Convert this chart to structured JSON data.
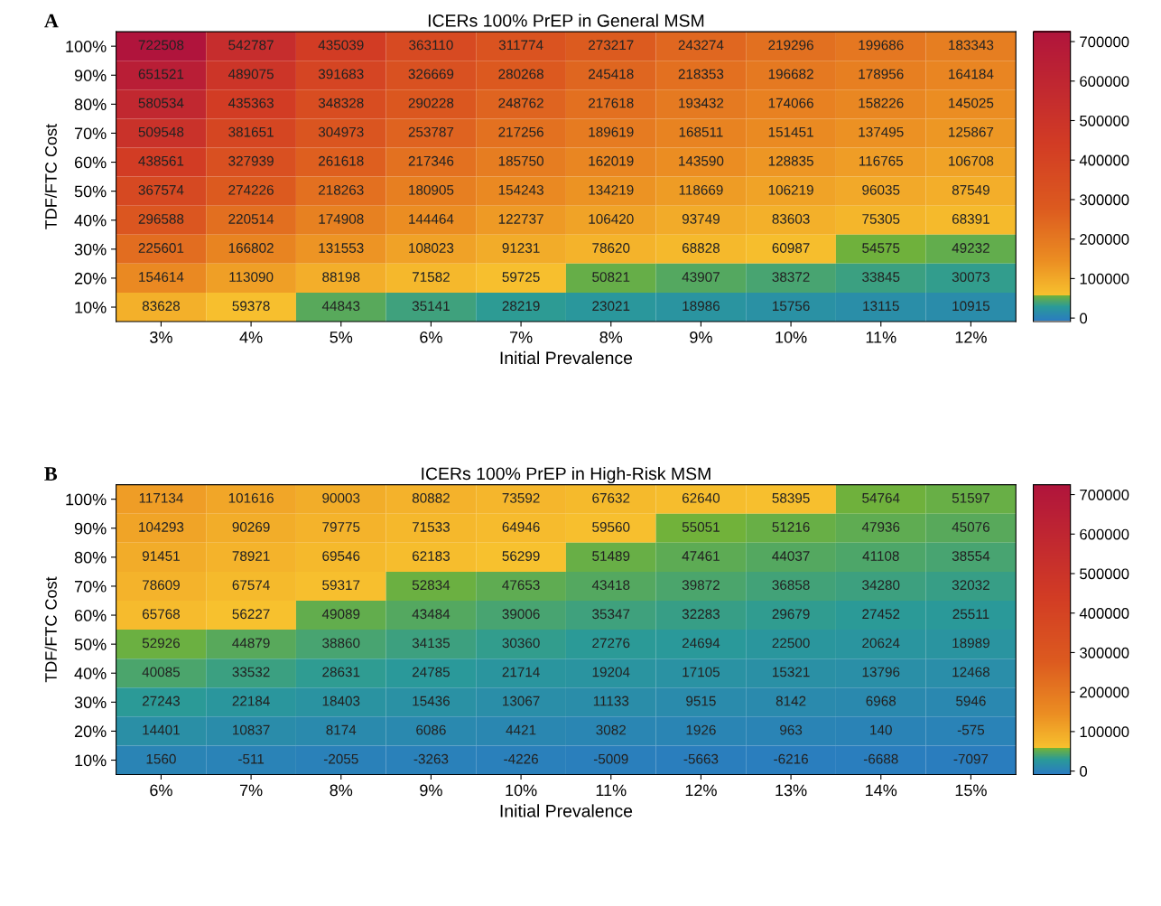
{
  "chart_data": [
    {
      "type": "heatmap",
      "title": "ICERs 100% PrEP in General MSM",
      "xlabel": "Initial Prevalence",
      "ylabel": "TDF/FTC Cost",
      "annotations": [
        "A"
      ],
      "categories": [
        "3%",
        "4%",
        "5%",
        "6%",
        "7%",
        "8%",
        "9%",
        "10%",
        "11%",
        "12%"
      ],
      "y_categories": [
        "100%",
        "90%",
        "80%",
        "70%",
        "60%",
        "50%",
        "40%",
        "30%",
        "20%",
        "10%"
      ],
      "cells": [
        [
          722508,
          542787,
          435039,
          363110,
          311774,
          273217,
          243274,
          219296,
          199686,
          183343
        ],
        [
          651521,
          489075,
          391683,
          326669,
          280268,
          245418,
          218353,
          196682,
          178956,
          164184
        ],
        [
          580534,
          435363,
          348328,
          290228,
          248762,
          217618,
          193432,
          174066,
          158226,
          145025
        ],
        [
          509548,
          381651,
          304973,
          253787,
          217256,
          189619,
          168511,
          151451,
          137495,
          125867
        ],
        [
          438561,
          327939,
          261618,
          217346,
          185750,
          162019,
          143590,
          128835,
          116765,
          106708
        ],
        [
          367574,
          274226,
          218263,
          180905,
          154243,
          134219,
          118669,
          106219,
          96035,
          87549
        ],
        [
          296588,
          220514,
          174908,
          144464,
          122737,
          106420,
          93749,
          83603,
          75305,
          68391
        ],
        [
          225601,
          166802,
          131553,
          108023,
          91231,
          78620,
          68828,
          60987,
          54575,
          49232
        ],
        [
          154614,
          113090,
          88198,
          71582,
          59725,
          50821,
          43907,
          38372,
          33845,
          30073
        ],
        [
          83628,
          59378,
          44843,
          35141,
          28219,
          23021,
          18986,
          15756,
          13115,
          10915
        ]
      ],
      "data_labels": true,
      "clim": [
        -9000,
        725000
      ],
      "cticks": [
        0,
        100000,
        200000,
        300000,
        400000,
        500000,
        600000,
        700000
      ]
    },
    {
      "type": "heatmap",
      "title": "ICERs 100% PrEP in High-Risk MSM",
      "xlabel": "Initial Prevalence",
      "ylabel": "TDF/FTC Cost",
      "annotations": [
        "B"
      ],
      "categories": [
        "6%",
        "7%",
        "8%",
        "9%",
        "10%",
        "11%",
        "12%",
        "13%",
        "14%",
        "15%"
      ],
      "y_categories": [
        "100%",
        "90%",
        "80%",
        "70%",
        "60%",
        "50%",
        "40%",
        "30%",
        "20%",
        "10%"
      ],
      "cells": [
        [
          117134,
          101616,
          90003,
          80882,
          73592,
          67632,
          62640,
          58395,
          54764,
          51597
        ],
        [
          104293,
          90269,
          79775,
          71533,
          64946,
          59560,
          55051,
          51216,
          47936,
          45076
        ],
        [
          91451,
          78921,
          69546,
          62183,
          56299,
          51489,
          47461,
          44037,
          41108,
          38554
        ],
        [
          78609,
          67574,
          59317,
          52834,
          47653,
          43418,
          39872,
          36858,
          34280,
          32032
        ],
        [
          65768,
          56227,
          49089,
          43484,
          39006,
          35347,
          32283,
          29679,
          27452,
          25511
        ],
        [
          52926,
          44879,
          38860,
          34135,
          30360,
          27276,
          24694,
          22500,
          20624,
          18989
        ],
        [
          40085,
          33532,
          28631,
          24785,
          21714,
          19204,
          17105,
          15321,
          13796,
          12468
        ],
        [
          27243,
          22184,
          18403,
          15436,
          13067,
          11133,
          9515,
          8142,
          6968,
          5946
        ],
        [
          14401,
          10837,
          8174,
          6086,
          4421,
          3082,
          1926,
          963,
          140,
          -575
        ],
        [
          1560,
          -511,
          -2055,
          -3263,
          -4226,
          -5009,
          -5663,
          -6216,
          -6688,
          -7097
        ]
      ],
      "data_labels": true,
      "clim": [
        -9000,
        725000
      ],
      "cticks": [
        0,
        100000,
        200000,
        300000,
        400000,
        500000,
        600000,
        700000
      ]
    }
  ]
}
